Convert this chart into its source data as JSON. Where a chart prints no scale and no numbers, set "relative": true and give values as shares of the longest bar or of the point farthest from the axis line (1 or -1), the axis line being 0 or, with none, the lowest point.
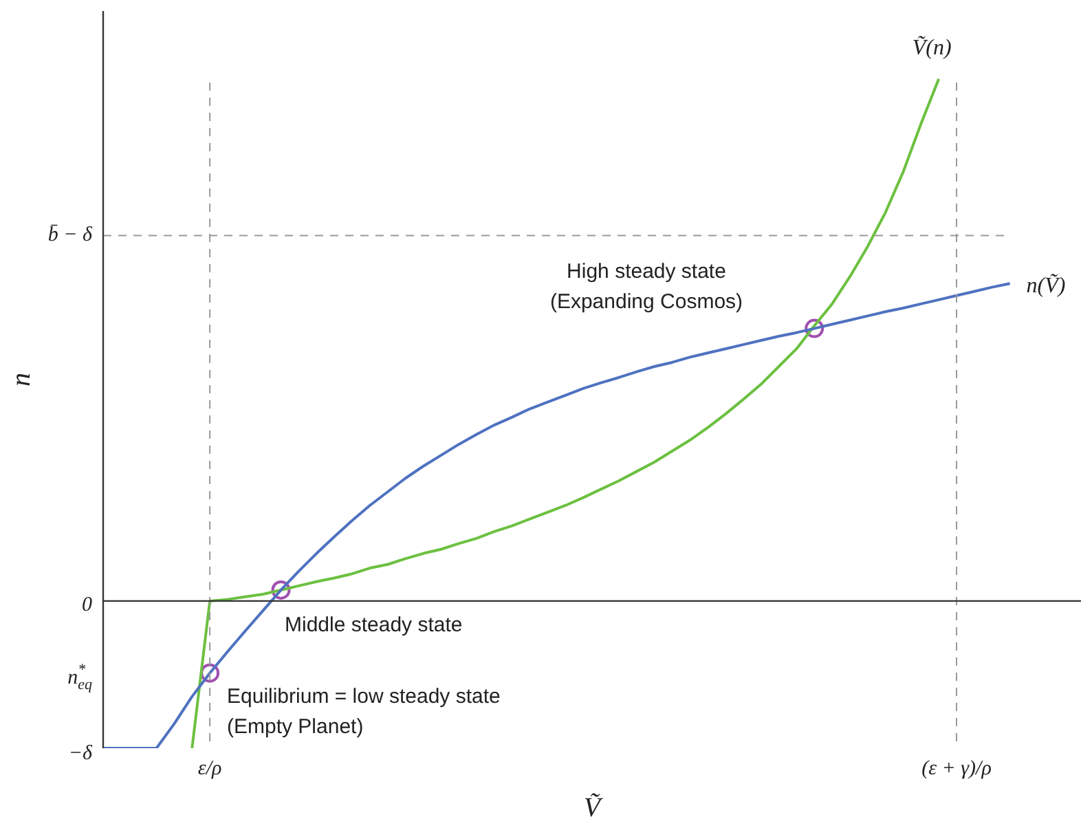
{
  "chart_data": {
    "type": "line",
    "relative": true,
    "xlabel": "Ṽ",
    "ylabel": "n",
    "grid": false,
    "legend": false,
    "marker": "none",
    "line_style": "solid",
    "categories": [
      null,
      null,
      null,
      null,
      null,
      null,
      "ε/ρ",
      null,
      null,
      null,
      null,
      null,
      null,
      null,
      null,
      null,
      null,
      null,
      null,
      null,
      null,
      null,
      null,
      null,
      null,
      null,
      null,
      null,
      null,
      null,
      null,
      null,
      null,
      null,
      null,
      null,
      null,
      null,
      null,
      null,
      null,
      null,
      null,
      null,
      null,
      null,
      null,
      null,
      "(ε + γ)/ρ",
      null,
      null,
      null,
      null,
      null,
      null,
      null
    ],
    "series": [
      {
        "name": "n(Ṽ)",
        "color": "#4f72c0",
        "values": [
          -0.282,
          -0.282,
          -0.282,
          -0.282,
          -0.235,
          -0.183,
          -0.138,
          -0.097,
          -0.057,
          -0.018,
          0.021,
          0.057,
          0.091,
          0.123,
          0.154,
          0.183,
          0.209,
          0.235,
          0.258,
          0.279,
          0.3,
          0.319,
          0.337,
          0.352,
          0.368,
          0.381,
          0.394,
          0.407,
          0.418,
          0.428,
          0.439,
          0.449,
          0.457,
          0.467,
          0.475,
          0.483,
          0.491,
          0.499,
          0.507,
          0.514,
          0.522,
          0.53,
          0.538,
          0.546,
          0.554,
          0.561,
          0.569,
          0.577,
          0.585,
          0.593,
          0.601,
          0.608,
          null,
          null,
          null,
          null
        ]
      },
      {
        "name": "Ṽ(n)",
        "color": "#6cc040",
        "values": [
          null,
          null,
          null,
          null,
          null,
          -0.282,
          0,
          0.003,
          0.008,
          0.013,
          0.021,
          0.029,
          0.037,
          0.044,
          0.052,
          0.063,
          0.07,
          0.081,
          0.091,
          0.099,
          0.11,
          0.12,
          0.133,
          0.144,
          0.157,
          0.17,
          0.183,
          0.198,
          0.214,
          0.23,
          0.248,
          0.266,
          0.287,
          0.308,
          0.332,
          0.358,
          0.386,
          0.415,
          0.449,
          0.483,
          0.527,
          0.569,
          0.621,
          0.679,
          0.744,
          0.822,
          0.914,
          1,
          null,
          null,
          null,
          null,
          null,
          null,
          null,
          null
        ]
      },
      {
        "type": "scatter",
        "marker": "circle",
        "color": "#a050b0",
        "values": [
          null,
          null,
          null,
          null,
          null,
          null,
          -0.138,
          null,
          null,
          null,
          0.021,
          null,
          null,
          null,
          null,
          null,
          null,
          null,
          null,
          null,
          null,
          null,
          null,
          null,
          null,
          null,
          null,
          null,
          null,
          null,
          null,
          null,
          null,
          null,
          null,
          null,
          null,
          null,
          null,
          null,
          0.522,
          null,
          null,
          null,
          null,
          null,
          null,
          null,
          null,
          null,
          null,
          null,
          null,
          null,
          null,
          null
        ]
      }
    ],
    "ref_lines": [
      {
        "axis": "x",
        "value": "ε/ρ",
        "color": "#999999",
        "line_style": "dashed"
      },
      {
        "axis": "x",
        "value": "(ε + γ)/ρ",
        "color": "#999999",
        "line_style": "dashed"
      },
      {
        "axis": "y",
        "value": 0.7,
        "label": "b̄ − δ",
        "color": "#999999",
        "line_style": "dashed"
      }
    ],
    "annotations": [
      "0",
      "n$^{*}$$_{eq}$",
      "−δ",
      "High steady state",
      "(Expanding Cosmos)",
      "Middle steady state",
      "Equilibrium = low steady state",
      "(Empty Planet)"
    ]
  }
}
